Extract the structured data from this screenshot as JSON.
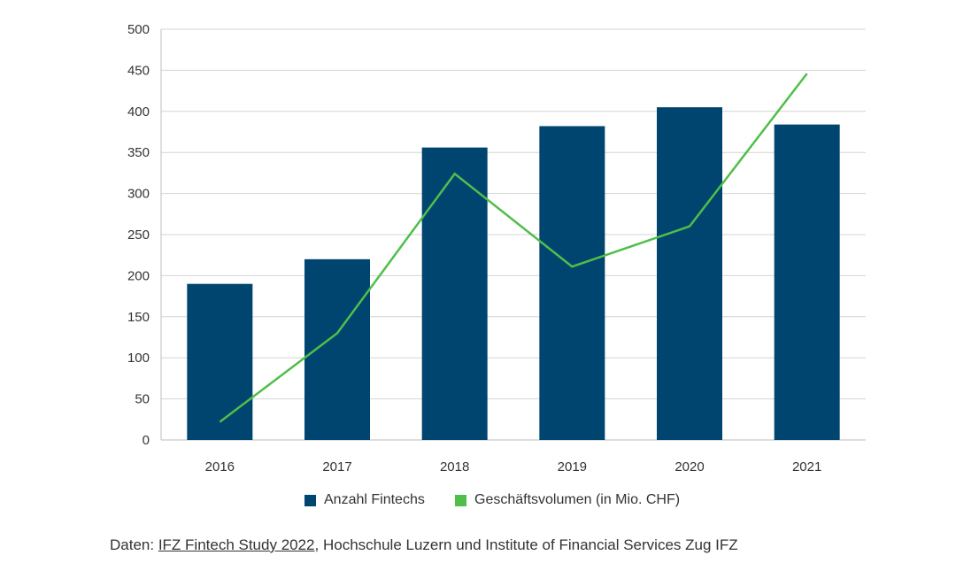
{
  "chart_data": {
    "type": "bar+line",
    "categories": [
      "2016",
      "2017",
      "2018",
      "2019",
      "2020",
      "2021"
    ],
    "series": [
      {
        "name": "Anzahl Fintechs",
        "type": "bar",
        "color": "#004470",
        "values": [
          190,
          220,
          356,
          382,
          405,
          384
        ]
      },
      {
        "name": "Geschäftsvolumen (in Mio. CHF)",
        "type": "line",
        "color": "#4fbf4a",
        "values": [
          22,
          130,
          324,
          211,
          260,
          446
        ]
      }
    ],
    "ylim": [
      0,
      500
    ],
    "yticks": [
      "0",
      "50",
      "100",
      "150",
      "200",
      "250",
      "300",
      "350",
      "400",
      "450",
      "500"
    ],
    "grid": true,
    "legend_position": "bottom"
  },
  "source": {
    "prefix": "Daten: ",
    "link_text": "IFZ Fintech Study 2022",
    "suffix": ", Hochschule Luzern und Institute of Financial Services Zug IFZ"
  }
}
